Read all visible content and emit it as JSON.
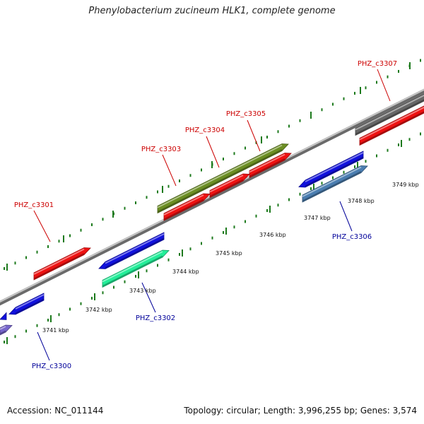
{
  "title": "Phenylobacterium zucineum HLK1, complete genome",
  "footer": {
    "accession": "Accession: NC_011144",
    "topology": "Topology: circular; Length: 3,996,255 bp; Genes: 3,574"
  },
  "colors": {
    "forward_label": "#cc0000",
    "reverse_label": "#000099",
    "backbone": "#8a8a8a",
    "ticks": "#1d7a1d"
  },
  "scale_labels": [
    {
      "text": "3741 kbp",
      "value": 3741
    },
    {
      "text": "3742 kbp",
      "value": 3742
    },
    {
      "text": "3743 kbp",
      "value": 3743
    },
    {
      "text": "3744 kbp",
      "value": 3744
    },
    {
      "text": "3745 kbp",
      "value": 3745
    },
    {
      "text": "3746 kbp",
      "value": 3746
    },
    {
      "text": "3747 kbp",
      "value": 3747
    },
    {
      "text": "3748 kbp",
      "value": 3748
    },
    {
      "text": "3749 kbp",
      "value": 3749
    }
  ],
  "gene_labels": [
    {
      "text": "PHZ_c3300",
      "strand": "reverse"
    },
    {
      "text": "PHZ_c3301",
      "strand": "forward"
    },
    {
      "text": "PHZ_c3302",
      "strand": "reverse"
    },
    {
      "text": "PHZ_c3303",
      "strand": "forward"
    },
    {
      "text": "PHZ_c3304",
      "strand": "forward"
    },
    {
      "text": "PHZ_c3305",
      "strand": "forward"
    },
    {
      "text": "PHZ_c3306",
      "strand": "reverse"
    },
    {
      "text": "PHZ_c3307",
      "strand": "forward"
    }
  ],
  "features": [
    {
      "name": "feature-red-1",
      "color": "#ee1111"
    },
    {
      "name": "feature-red-2",
      "color": "#ee1111"
    },
    {
      "name": "feature-red-3",
      "color": "#ee1111"
    },
    {
      "name": "feature-red-4",
      "color": "#ee1111"
    },
    {
      "name": "feature-red-5",
      "color": "#ee1111"
    },
    {
      "name": "feature-olive",
      "color": "#6b8e23"
    },
    {
      "name": "feature-gray",
      "color": "#666666"
    },
    {
      "name": "feature-blue-1",
      "color": "#1111dd"
    },
    {
      "name": "feature-blue-2",
      "color": "#1111dd"
    },
    {
      "name": "feature-blue-3",
      "color": "#1111dd"
    },
    {
      "name": "feature-blue-4",
      "color": "#1111dd"
    },
    {
      "name": "feature-teal",
      "color": "#22ee99"
    },
    {
      "name": "feature-steelblue",
      "color": "#4a7db0"
    },
    {
      "name": "feature-purple",
      "color": "#7766cc"
    }
  ]
}
